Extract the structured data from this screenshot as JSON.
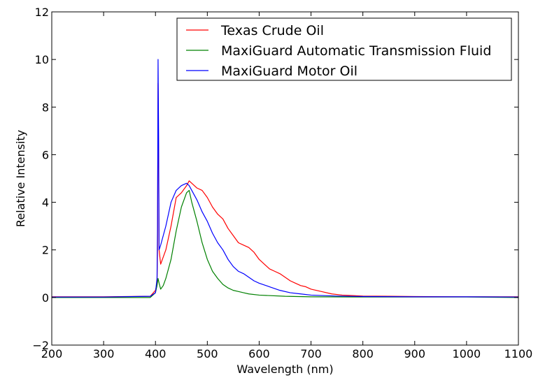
{
  "chart_data": {
    "type": "line",
    "title": "",
    "xlabel": "Wavelength (nm)",
    "ylabel": "Relative Intensity",
    "xlim": [
      200,
      1100
    ],
    "ylim": [
      -2,
      12
    ],
    "xticks": [
      200,
      300,
      400,
      500,
      600,
      700,
      800,
      900,
      1000,
      1100
    ],
    "yticks": [
      -2,
      0,
      2,
      4,
      6,
      8,
      10,
      12
    ],
    "xtick_labels": [
      "200",
      "300",
      "400",
      "500",
      "600",
      "700",
      "800",
      "900",
      "1000",
      "1100"
    ],
    "ytick_labels": [
      "−2",
      "0",
      "2",
      "4",
      "6",
      "8",
      "10",
      "12"
    ],
    "grid": false,
    "legend": {
      "position": "top-right"
    },
    "series": [
      {
        "name": "Texas Crude Oil",
        "color": "#ff0000",
        "x": [
          200,
          300,
          390,
          400,
          403,
          404,
          405,
          406,
          407,
          410,
          420,
          430,
          440,
          450,
          460,
          465,
          470,
          480,
          490,
          500,
          510,
          520,
          530,
          540,
          550,
          560,
          570,
          580,
          590,
          600,
          610,
          620,
          630,
          640,
          650,
          660,
          670,
          680,
          690,
          700,
          720,
          740,
          760,
          780,
          800,
          850,
          900,
          1000,
          1100
        ],
        "y": [
          0.03,
          0.03,
          0.05,
          0.3,
          0.6,
          2.0,
          9.0,
          6.0,
          2.0,
          1.4,
          2.0,
          3.0,
          4.2,
          4.4,
          4.7,
          4.9,
          4.8,
          4.6,
          4.5,
          4.2,
          3.8,
          3.5,
          3.3,
          2.9,
          2.6,
          2.3,
          2.2,
          2.1,
          1.9,
          1.6,
          1.4,
          1.2,
          1.1,
          1.0,
          0.85,
          0.7,
          0.6,
          0.5,
          0.45,
          0.35,
          0.25,
          0.15,
          0.1,
          0.08,
          0.06,
          0.05,
          0.04,
          0.03,
          0.03
        ]
      },
      {
        "name": "MaxiGuard Automatic Transmission Fluid",
        "color": "#008000",
        "x": [
          200,
          300,
          390,
          400,
          403,
          405,
          407,
          410,
          415,
          420,
          430,
          440,
          450,
          460,
          465,
          470,
          480,
          490,
          500,
          510,
          520,
          530,
          540,
          550,
          560,
          570,
          580,
          600,
          650,
          700,
          800,
          900,
          1000,
          1100
        ],
        "y": [
          0.0,
          0.0,
          0.0,
          0.2,
          0.5,
          0.8,
          0.6,
          0.35,
          0.5,
          0.8,
          1.6,
          2.8,
          3.8,
          4.4,
          4.5,
          4.0,
          3.2,
          2.3,
          1.6,
          1.1,
          0.8,
          0.55,
          0.4,
          0.3,
          0.25,
          0.2,
          0.15,
          0.1,
          0.05,
          0.03,
          0.02,
          0.02,
          0.02,
          0.0
        ]
      },
      {
        "name": "MaxiGuard Motor Oil",
        "color": "#0000ff",
        "x": [
          200,
          300,
          390,
          400,
          403,
          404,
          405,
          406,
          407,
          410,
          415,
          420,
          430,
          440,
          450,
          460,
          465,
          470,
          480,
          490,
          500,
          510,
          520,
          530,
          540,
          550,
          560,
          570,
          580,
          590,
          600,
          620,
          640,
          660,
          680,
          700,
          750,
          800,
          900,
          1000,
          1100
        ],
        "y": [
          0.02,
          0.02,
          0.05,
          0.2,
          0.8,
          3.0,
          10.0,
          7.0,
          2.0,
          2.2,
          2.6,
          3.0,
          4.0,
          4.5,
          4.7,
          4.8,
          4.7,
          4.5,
          4.1,
          3.6,
          3.2,
          2.7,
          2.3,
          2.0,
          1.6,
          1.3,
          1.1,
          1.0,
          0.85,
          0.7,
          0.6,
          0.45,
          0.3,
          0.2,
          0.15,
          0.1,
          0.06,
          0.04,
          0.03,
          0.03,
          0.02
        ]
      }
    ]
  }
}
